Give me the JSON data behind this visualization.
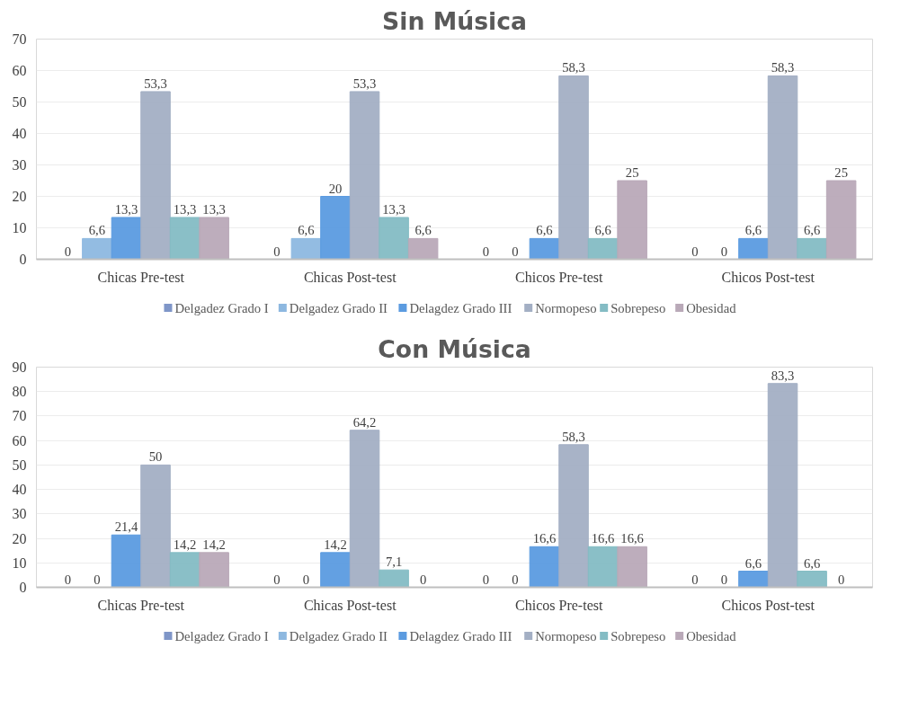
{
  "chart_data": [
    {
      "type": "bar",
      "title": "Sin Música",
      "categories": [
        "Chicas Pre-test",
        "Chicas Post-test",
        "Chicos Pre-test",
        "Chicos Post-test"
      ],
      "ylim": [
        0,
        70
      ],
      "yticks": [
        0,
        10,
        20,
        30,
        40,
        50,
        60,
        70
      ],
      "grid": "y",
      "legend": "bottom",
      "series": [
        {
          "name": "Delgadez Grado I",
          "color": "#7f96c8",
          "values": [
            0,
            0,
            0,
            0
          ],
          "value_labels": [
            "0",
            "0",
            "0",
            "0"
          ]
        },
        {
          "name": "Delgadez Grado II",
          "color": "#8db8e0",
          "values": [
            6.6,
            6.6,
            0,
            0
          ],
          "value_labels": [
            "6,6",
            "6,6",
            "0",
            "0"
          ]
        },
        {
          "name": "Delagdez Grado III",
          "color": "#5b9be0",
          "values": [
            13.3,
            20,
            6.6,
            6.6
          ],
          "value_labels": [
            "13,3",
            "20",
            "6,6",
            "6,6"
          ]
        },
        {
          "name": "Normopeso",
          "color": "#a3afc4",
          "values": [
            53.3,
            53.3,
            58.3,
            58.3
          ],
          "value_labels": [
            "53,3",
            "53,3",
            "58,3",
            "58,3"
          ]
        },
        {
          "name": "Sobrepeso",
          "color": "#84bcc4",
          "values": [
            13.3,
            13.3,
            6.6,
            6.6
          ],
          "value_labels": [
            "13,3",
            "13,3",
            "6,6",
            "6,6"
          ]
        },
        {
          "name": "Obesidad",
          "color": "#b9a9b8",
          "values": [
            13.3,
            6.6,
            25,
            25
          ],
          "value_labels": [
            "13,3",
            "6,6",
            "25",
            "25"
          ]
        }
      ]
    },
    {
      "type": "bar",
      "title": "Con Música",
      "categories": [
        "Chicas Pre-test",
        "Chicas Post-test",
        "Chicos Pre-test",
        "Chicos Post-test"
      ],
      "ylim": [
        0,
        90
      ],
      "yticks": [
        0,
        10,
        20,
        30,
        40,
        50,
        60,
        70,
        80,
        90
      ],
      "grid": "y",
      "legend": "bottom",
      "series": [
        {
          "name": "Delgadez Grado I",
          "color": "#7f96c8",
          "values": [
            0,
            0,
            0,
            0
          ],
          "value_labels": [
            "0",
            "0",
            "0",
            "0"
          ]
        },
        {
          "name": "Delgadez Grado II",
          "color": "#8db8e0",
          "values": [
            0,
            0,
            0,
            0
          ],
          "value_labels": [
            "0",
            "0",
            "0",
            "0"
          ]
        },
        {
          "name": "Delagdez Grado III",
          "color": "#5b9be0",
          "values": [
            21.4,
            14.2,
            16.6,
            6.6
          ],
          "value_labels": [
            "21,4",
            "14,2",
            "16,6",
            "6,6"
          ]
        },
        {
          "name": "Normopeso",
          "color": "#a3afc4",
          "values": [
            50,
            64.2,
            58.3,
            83.3
          ],
          "value_labels": [
            "50",
            "64,2",
            "58,3",
            "83,3"
          ]
        },
        {
          "name": "Sobrepeso",
          "color": "#84bcc4",
          "values": [
            14.2,
            7.1,
            16.6,
            6.6
          ],
          "value_labels": [
            "14,2",
            "7,1",
            "16,6",
            "6,6"
          ]
        },
        {
          "name": "Obesidad",
          "color": "#b9a9b8",
          "values": [
            14.2,
            0,
            16.6,
            0
          ],
          "value_labels": [
            "14,2",
            "0",
            "16,6",
            "0"
          ]
        }
      ]
    }
  ]
}
